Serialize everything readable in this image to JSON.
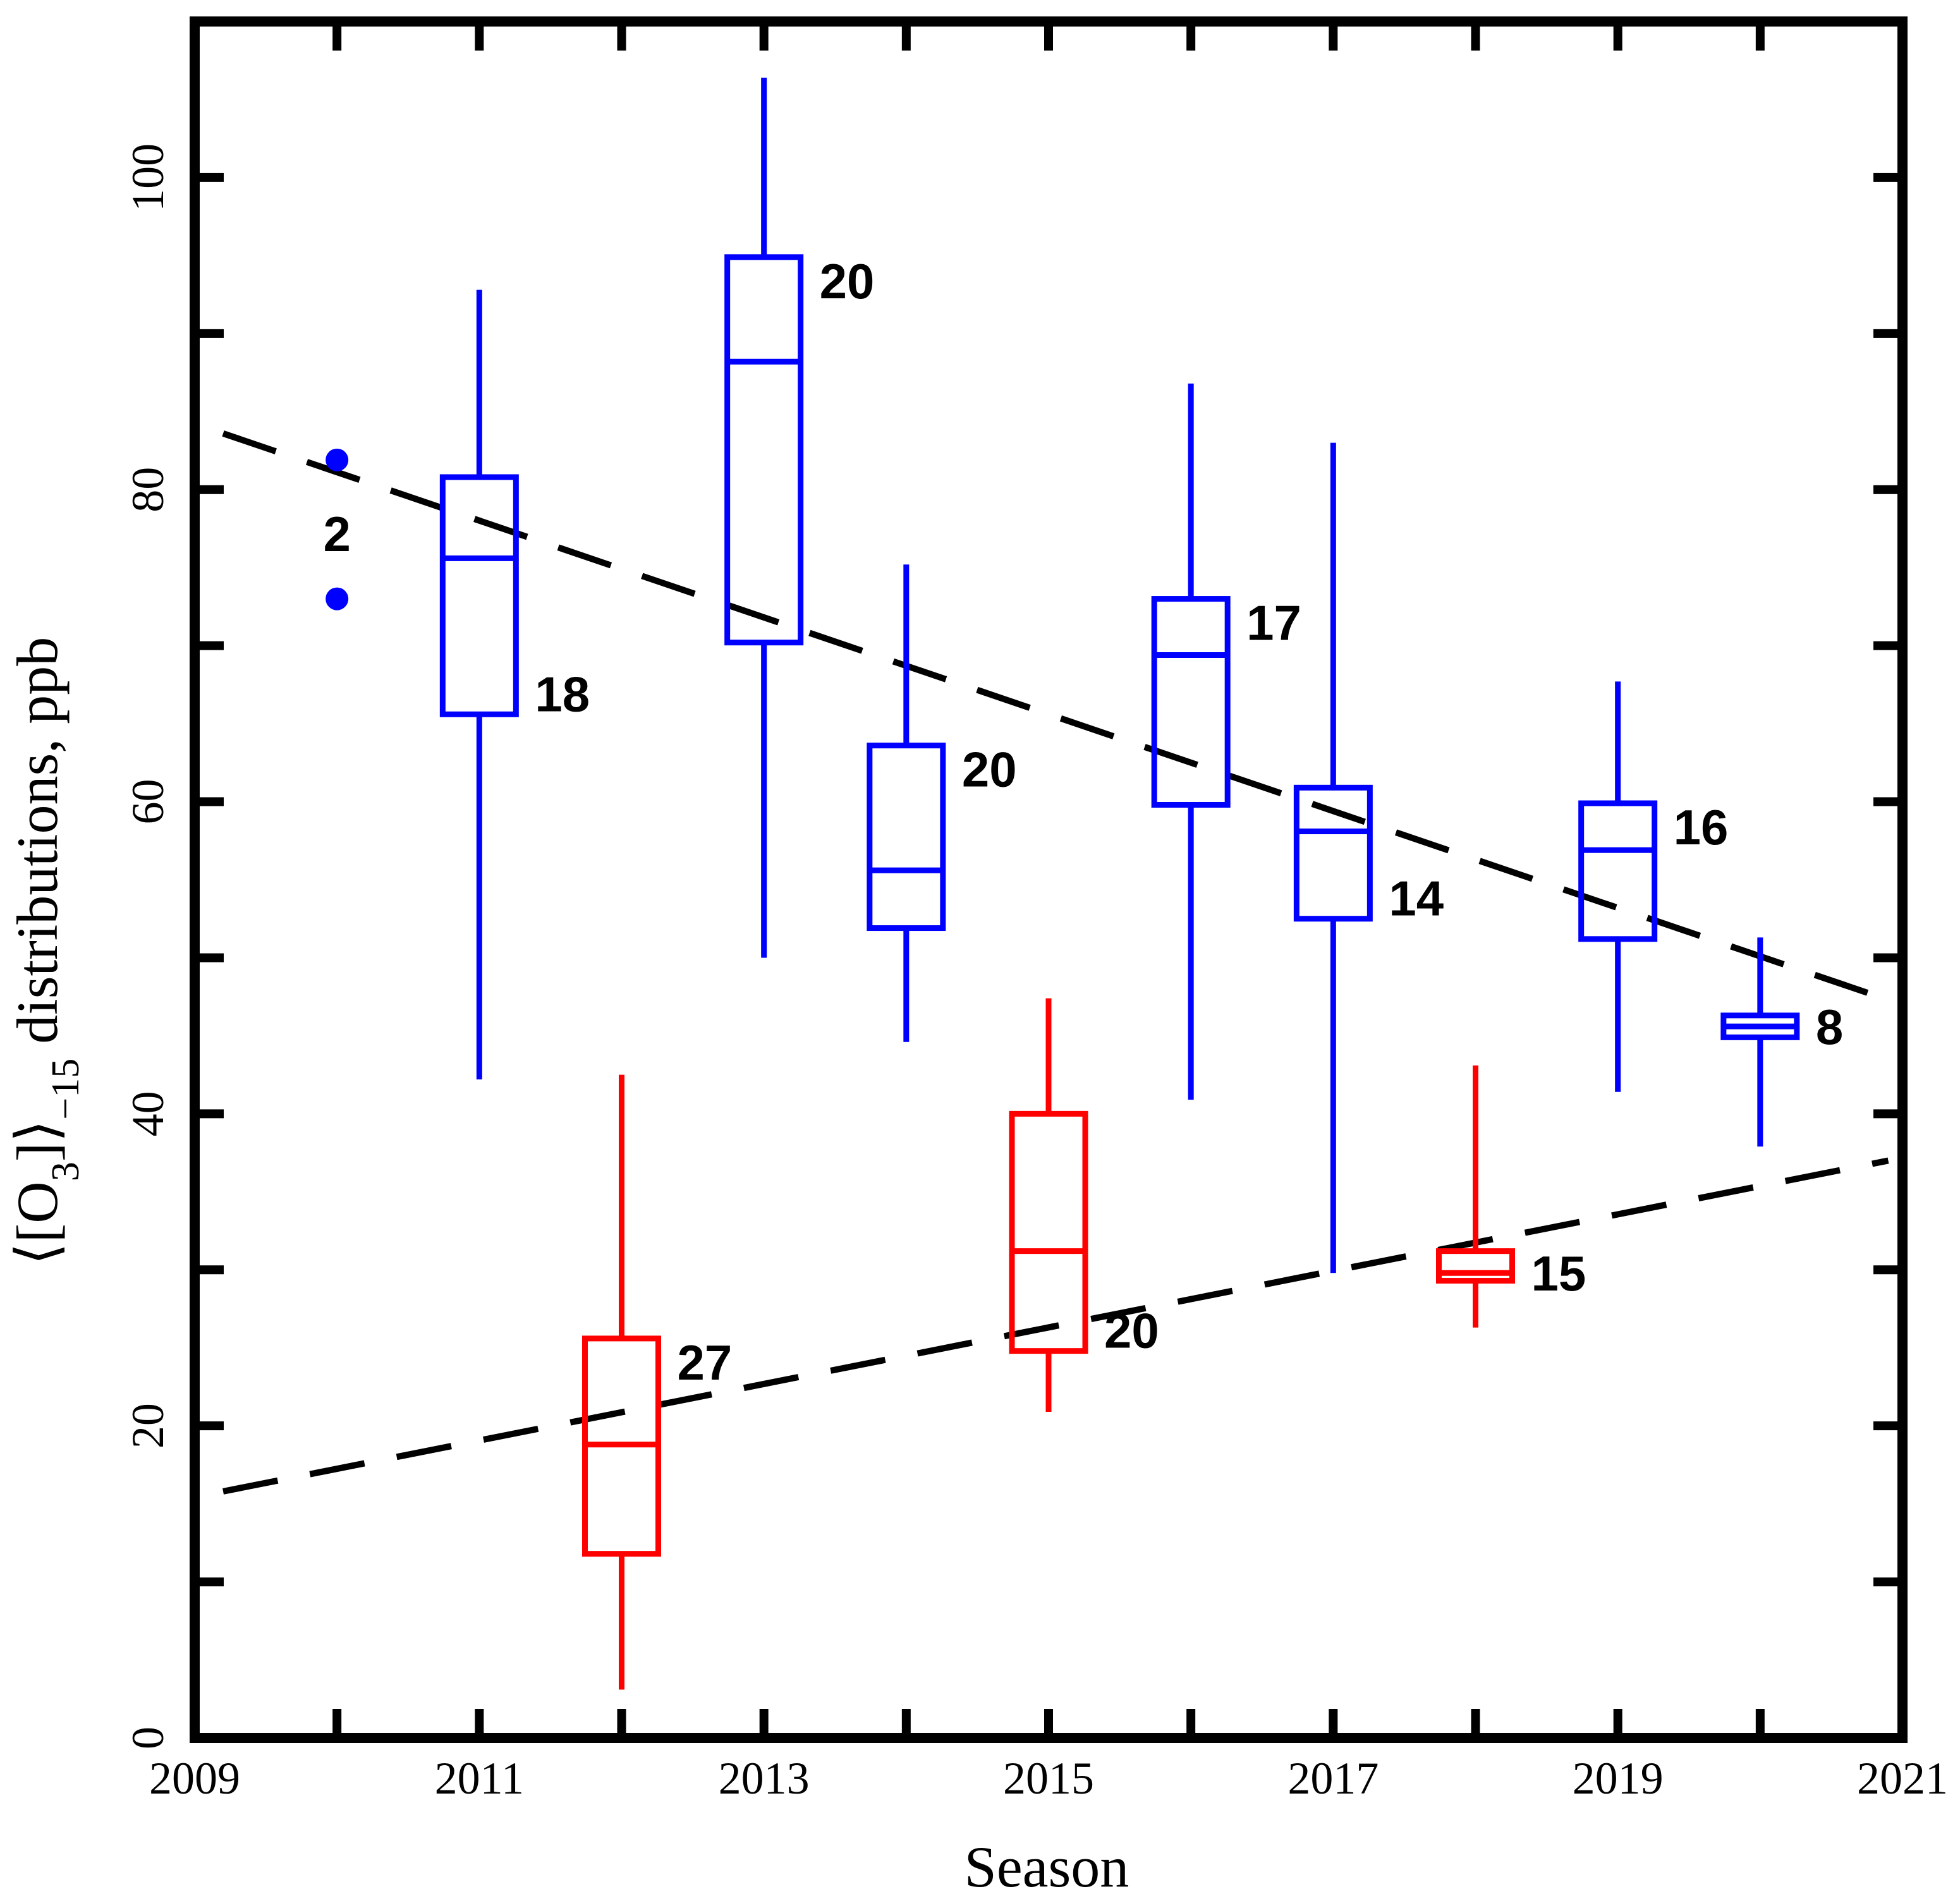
{
  "chart_data": {
    "type": "boxplot",
    "xlabel": "Season",
    "ylabel_parts": {
      "open": "⟨[O",
      "sub3": "3",
      "close": "]⟩",
      "subscript": "−15",
      "rest": " distributions, ppb"
    },
    "xlim": [
      2009,
      2021
    ],
    "ylim": [
      0,
      110
    ],
    "x_ticks": [
      2009,
      2011,
      2013,
      2015,
      2017,
      2019,
      2021
    ],
    "x_tick_labels": [
      "2009",
      "2011",
      "2013",
      "2015",
      "2017",
      "2019",
      "2021"
    ],
    "y_ticks": [
      0,
      20,
      40,
      60,
      80,
      100
    ],
    "y_tick_labels": [
      "0",
      "20",
      "40",
      "60",
      "80",
      "100"
    ],
    "colors": {
      "blue": "#0000ff",
      "red": "#ff0000",
      "trend": "#000000",
      "axis": "#000000"
    },
    "series": [
      {
        "name": "blue",
        "color": "#0000ff",
        "boxes": [
          {
            "x": 2011,
            "whisker_low": 42.2,
            "q1": 65.6,
            "median": 75.6,
            "q3": 80.8,
            "whisker_high": 92.8,
            "n": "18",
            "label_pos": "lower"
          },
          {
            "x": 2013,
            "whisker_low": 50.0,
            "q1": 70.2,
            "median": 88.2,
            "q3": 94.9,
            "whisker_high": 106.4,
            "n": "20",
            "label_pos": "upper"
          },
          {
            "x": 2014,
            "whisker_low": 44.6,
            "q1": 51.9,
            "median": 55.6,
            "q3": 63.6,
            "whisker_high": 75.2,
            "n": "20",
            "label_pos": "upper"
          },
          {
            "x": 2016,
            "whisker_low": 40.9,
            "q1": 59.8,
            "median": 69.4,
            "q3": 73.0,
            "whisker_high": 86.8,
            "n": "17",
            "label_pos": "upper"
          },
          {
            "x": 2017,
            "whisker_low": 29.8,
            "q1": 52.5,
            "median": 58.1,
            "q3": 60.9,
            "whisker_high": 83.0,
            "n": "14",
            "label_pos": "lower"
          },
          {
            "x": 2019,
            "whisker_low": 41.4,
            "q1": 51.2,
            "median": 56.9,
            "q3": 59.9,
            "whisker_high": 67.7,
            "n": "16",
            "label_pos": "upper"
          },
          {
            "x": 2020,
            "whisker_low": 37.9,
            "q1": 44.9,
            "median": 45.6,
            "q3": 46.3,
            "whisker_high": 51.3,
            "n": "8",
            "label_pos": "mid"
          }
        ],
        "points": [
          {
            "x": 2010,
            "y": 81.9
          },
          {
            "x": 2010,
            "y": 73.0
          }
        ],
        "point_label": {
          "x": 2010,
          "y": 77.2,
          "text": "2"
        }
      },
      {
        "name": "red",
        "color": "#ff0000",
        "boxes": [
          {
            "x": 2012,
            "whisker_low": 3.1,
            "q1": 11.8,
            "median": 18.8,
            "q3": 25.6,
            "whisker_high": 42.5,
            "n": "27",
            "label_pos": "upper"
          },
          {
            "x": 2015,
            "whisker_low": 20.9,
            "q1": 24.8,
            "median": 31.2,
            "q3": 40.0,
            "whisker_high": 47.4,
            "n": "20",
            "label_pos": "lower"
          },
          {
            "x": 2018,
            "whisker_low": 26.3,
            "q1": 29.3,
            "median": 29.8,
            "q3": 31.2,
            "whisker_high": 43.1,
            "n": "15",
            "label_pos": "mid"
          }
        ]
      }
    ],
    "trend_lines": [
      {
        "name": "blue-trend",
        "x": [
          2009.2,
          2020.9
        ],
        "y": [
          83.6,
          47.3
        ]
      },
      {
        "name": "red-trend",
        "x": [
          2009.2,
          2020.9
        ],
        "y": [
          15.8,
          37.0
        ]
      }
    ]
  }
}
